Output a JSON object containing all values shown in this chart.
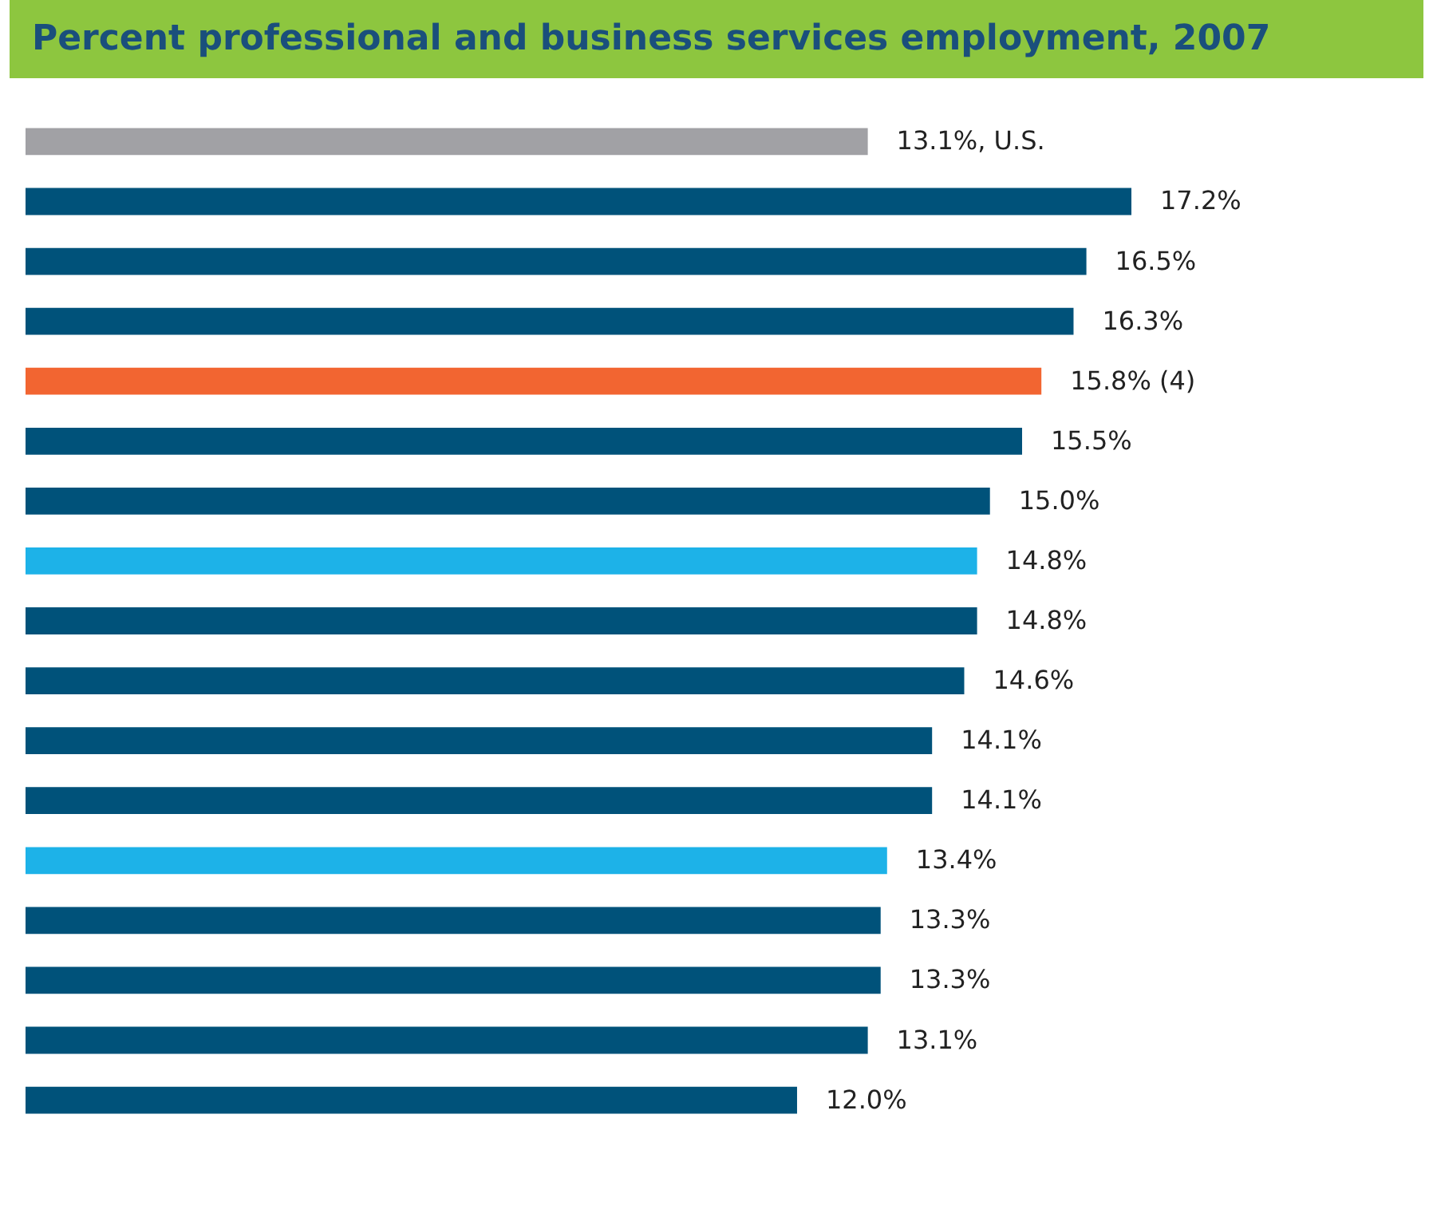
{
  "chart_data": {
    "type": "bar",
    "orientation": "horizontal",
    "title": "Percent professional and business services employment, 2007",
    "categories": [
      null,
      null,
      null,
      null,
      null,
      null,
      null,
      null,
      null,
      null,
      null,
      null,
      null,
      null,
      null,
      null,
      null
    ],
    "values": [
      13.1,
      17.2,
      16.5,
      16.3,
      15.8,
      15.5,
      15.0,
      14.8,
      14.8,
      14.6,
      14.1,
      14.1,
      13.4,
      13.3,
      13.3,
      13.1,
      12.0
    ],
    "colors": [
      "#a1a1a5",
      "#00527a",
      "#00527a",
      "#00527a",
      "#f26531",
      "#00527a",
      "#00527a",
      "#1db2e8",
      "#00527a",
      "#00527a",
      "#00527a",
      "#00527a",
      "#1db2e8",
      "#00527a",
      "#00527a",
      "#00527a",
      "#00527a"
    ],
    "value_labels": [
      "13.1%, U.S.",
      "17.2%",
      "16.5%",
      "16.3%",
      "15.8% (4)",
      "15.5%",
      "15.0%",
      "14.8%",
      "14.8%",
      "14.6%",
      "14.1%",
      "14.1%",
      "13.4%",
      "13.3%",
      "13.3%",
      "13.1%",
      "12.0%"
    ]
  }
}
